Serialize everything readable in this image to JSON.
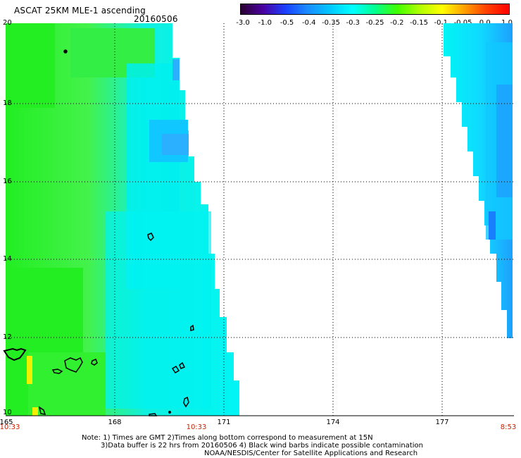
{
  "header": {
    "title": "ASCAT 25KM MLE-1 ascending",
    "date": "20160506"
  },
  "colorbar": {
    "ticks": [
      "-3.0",
      "-1.0",
      "-0.5",
      "-0.4",
      "-0.35",
      "-0.3",
      "-0.25",
      "-0.2",
      "-0.15",
      "-0.1",
      "-0.05",
      "0.0",
      "1.0"
    ],
    "colors": [
      "#2a0030",
      "#4a00a0",
      "#1a40ff",
      "#1a8cff",
      "#00c8ff",
      "#00ffff",
      "#00ff90",
      "#40ff00",
      "#b0ff00",
      "#ffff00",
      "#ffa000",
      "#ff4000",
      "#ff0000"
    ]
  },
  "map": {
    "lat_labels": [
      "20",
      "18",
      "16",
      "14",
      "12",
      "10"
    ],
    "lon_labels": [
      "165",
      "168",
      "171",
      "174",
      "177"
    ],
    "time_labels": [
      "10:33",
      "10:33",
      "8:53"
    ],
    "swath_colors": {
      "green": "#22ee22",
      "light_green": "#55f555",
      "cyan": "#00f5f5",
      "aqua": "#10e8e0",
      "blue": "#1ea0ff",
      "yellow": "#f0f000"
    }
  },
  "notes": {
    "line1": "Note: 1) Times are GMT 2)Times along bottom correspond to measurement at 15N",
    "line2": "3)Data buffer is 22 hrs from 20160506 4) Black wind barbs indicate possible contamination",
    "line3": "NOAA/NESDIS/Center for Satellite Applications and Research"
  }
}
